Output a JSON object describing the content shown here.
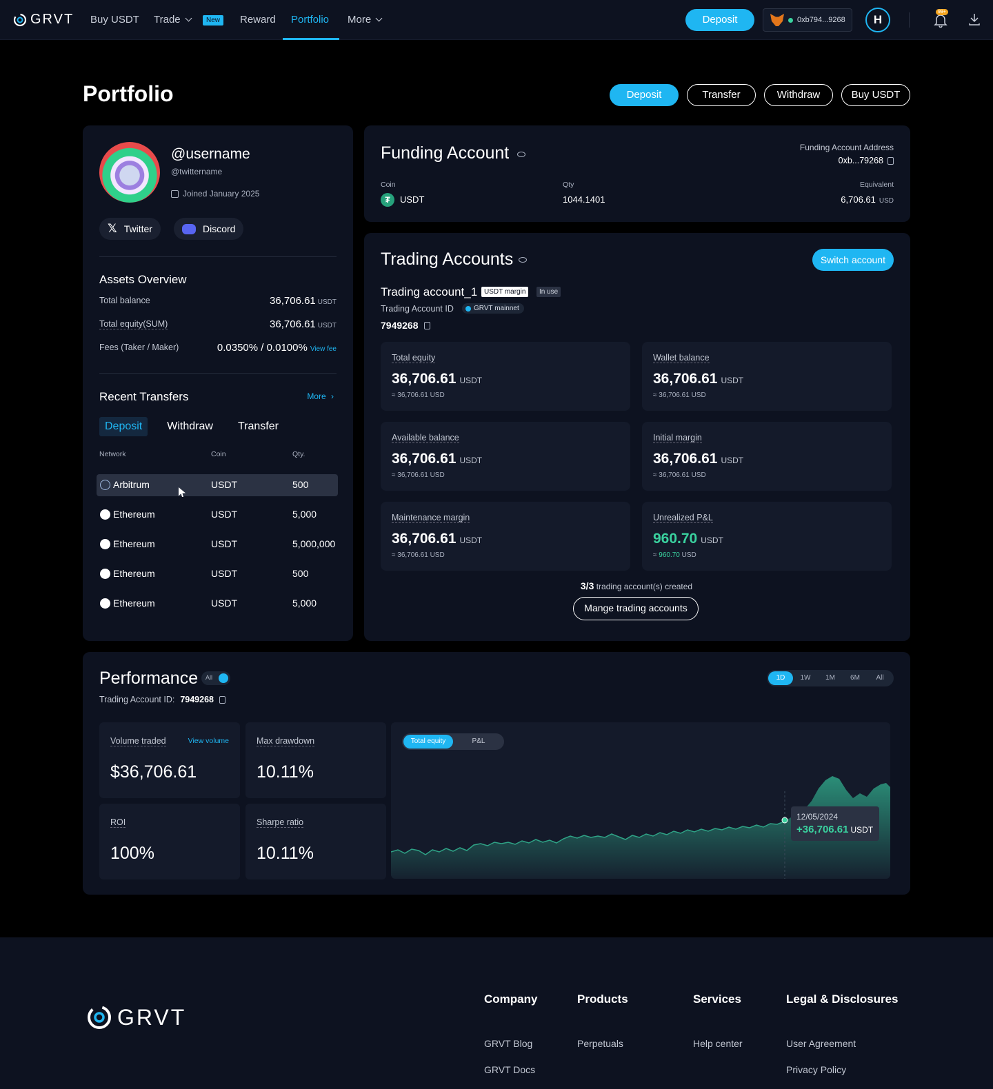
{
  "nav": {
    "logo": "GRVT",
    "links": [
      {
        "label": "Buy USDT"
      },
      {
        "label": "Trade"
      },
      {
        "label": "Reward"
      },
      {
        "label": "Portfolio"
      },
      {
        "label": "More"
      }
    ],
    "new_badge": "New",
    "deposit": "Deposit",
    "wallet": "0xb794...9268",
    "avatar_letter": "H",
    "notif_badge": "99+"
  },
  "page": {
    "title": "Portfolio",
    "actions": [
      "Deposit",
      "Transfer",
      "Withdraw",
      "Buy USDT"
    ]
  },
  "profile": {
    "username": "@username",
    "twitter_handle": "@twittername",
    "joined": "Joined January 2025",
    "social": [
      "Twitter",
      "Discord"
    ]
  },
  "assets": {
    "title": "Assets Overview",
    "total_balance_label": "Total balance",
    "total_balance": "36,706.61",
    "total_balance_unit": "USDT",
    "total_equity_label": "Total equity(SUM)",
    "total_equity": "36,706.61",
    "total_equity_unit": "USDT",
    "fees_label": "Fees (Taker / Maker)",
    "fees": "0.0350% / 0.0100%",
    "view_fee": "View fee"
  },
  "transfers": {
    "title": "Recent Transfers",
    "more": "More",
    "tabs": [
      "Deposit",
      "Withdraw",
      "Transfer"
    ],
    "headers": [
      "Network",
      "Coin",
      "Qty."
    ],
    "rows": [
      {
        "network": "Arbitrum",
        "coin": "USDT",
        "qty": "500"
      },
      {
        "network": "Ethereum",
        "coin": "USDT",
        "qty": "5,000"
      },
      {
        "network": "Ethereum",
        "coin": "USDT",
        "qty": "5,000,000"
      },
      {
        "network": "Ethereum",
        "coin": "USDT",
        "qty": "500"
      },
      {
        "network": "Ethereum",
        "coin": "USDT",
        "qty": "5,000"
      }
    ]
  },
  "funding": {
    "title": "Funding Account",
    "address_label": "Funding Account Address",
    "address": "0xb...79268",
    "coin_label": "Coin",
    "coin": "USDT",
    "qty_label": "Qty",
    "qty": "1044.1401",
    "equiv_label": "Equivalent",
    "equiv": "6,706.61",
    "equiv_unit": "USD"
  },
  "trading": {
    "title": "Trading Accounts",
    "switch": "Switch account",
    "account_name": "Trading account_1",
    "tag_margin": "USDT margin",
    "tag_inuse": "In use",
    "id_label": "Trading Account ID",
    "network": "GRVT mainnet",
    "id": "7949268",
    "metrics": [
      {
        "label": "Total equity",
        "value": "36,706.61",
        "unit": "USDT",
        "sub": "36,706.61",
        "sub_unit": "USD"
      },
      {
        "label": "Wallet balance",
        "value": "36,706.61",
        "unit": "USDT",
        "sub": "36,706.61",
        "sub_unit": "USD"
      },
      {
        "label": "Available balance",
        "value": "36,706.61",
        "unit": "USDT",
        "sub": "36,706.61",
        "sub_unit": "USD"
      },
      {
        "label": "Initial margin",
        "value": "36,706.61",
        "unit": "USDT",
        "sub": "36,706.61",
        "sub_unit": "USD"
      },
      {
        "label": "Maintenance margin",
        "value": "36,706.61",
        "unit": "USDT",
        "sub": "36,706.61",
        "sub_unit": "USD"
      },
      {
        "label": "Unrealized P&L",
        "value": "960.70",
        "unit": "USDT",
        "sub": "960.70",
        "sub_unit": "USD"
      }
    ],
    "count": "3/3",
    "count_text": "trading account(s) created",
    "manage": "Mange trading accounts"
  },
  "performance": {
    "title": "Performance",
    "toggle_label": "All",
    "id_label": "Trading Account ID:",
    "id": "7949268",
    "ranges": [
      "1D",
      "1W",
      "1M",
      "6M",
      "All"
    ],
    "stats": [
      {
        "label": "Volume traded",
        "link": "View volume",
        "value": "$36,706.61"
      },
      {
        "label": "Max drawdown",
        "value": "10.11%"
      },
      {
        "label": "ROI",
        "value": "100%"
      },
      {
        "label": "Sharpe ratio",
        "value": "10.11%"
      }
    ],
    "chart_tabs": [
      "Total equity",
      "P&L"
    ],
    "tooltip_date": "12/05/2024",
    "tooltip_value": "+36,706.61",
    "tooltip_unit": "USDT",
    "accent": "#3ad29f"
  },
  "footer": {
    "logo": "GRVT",
    "columns": [
      {
        "title": "Company",
        "links": [
          "GRVT Blog",
          "GRVT Docs"
        ]
      },
      {
        "title": "Products",
        "links": [
          "Perpetuals"
        ]
      },
      {
        "title": "Services",
        "links": [
          "Help center"
        ]
      },
      {
        "title": "Legal & Disclosures",
        "links": [
          "User Agreement",
          "Privacy Policy"
        ]
      }
    ]
  }
}
